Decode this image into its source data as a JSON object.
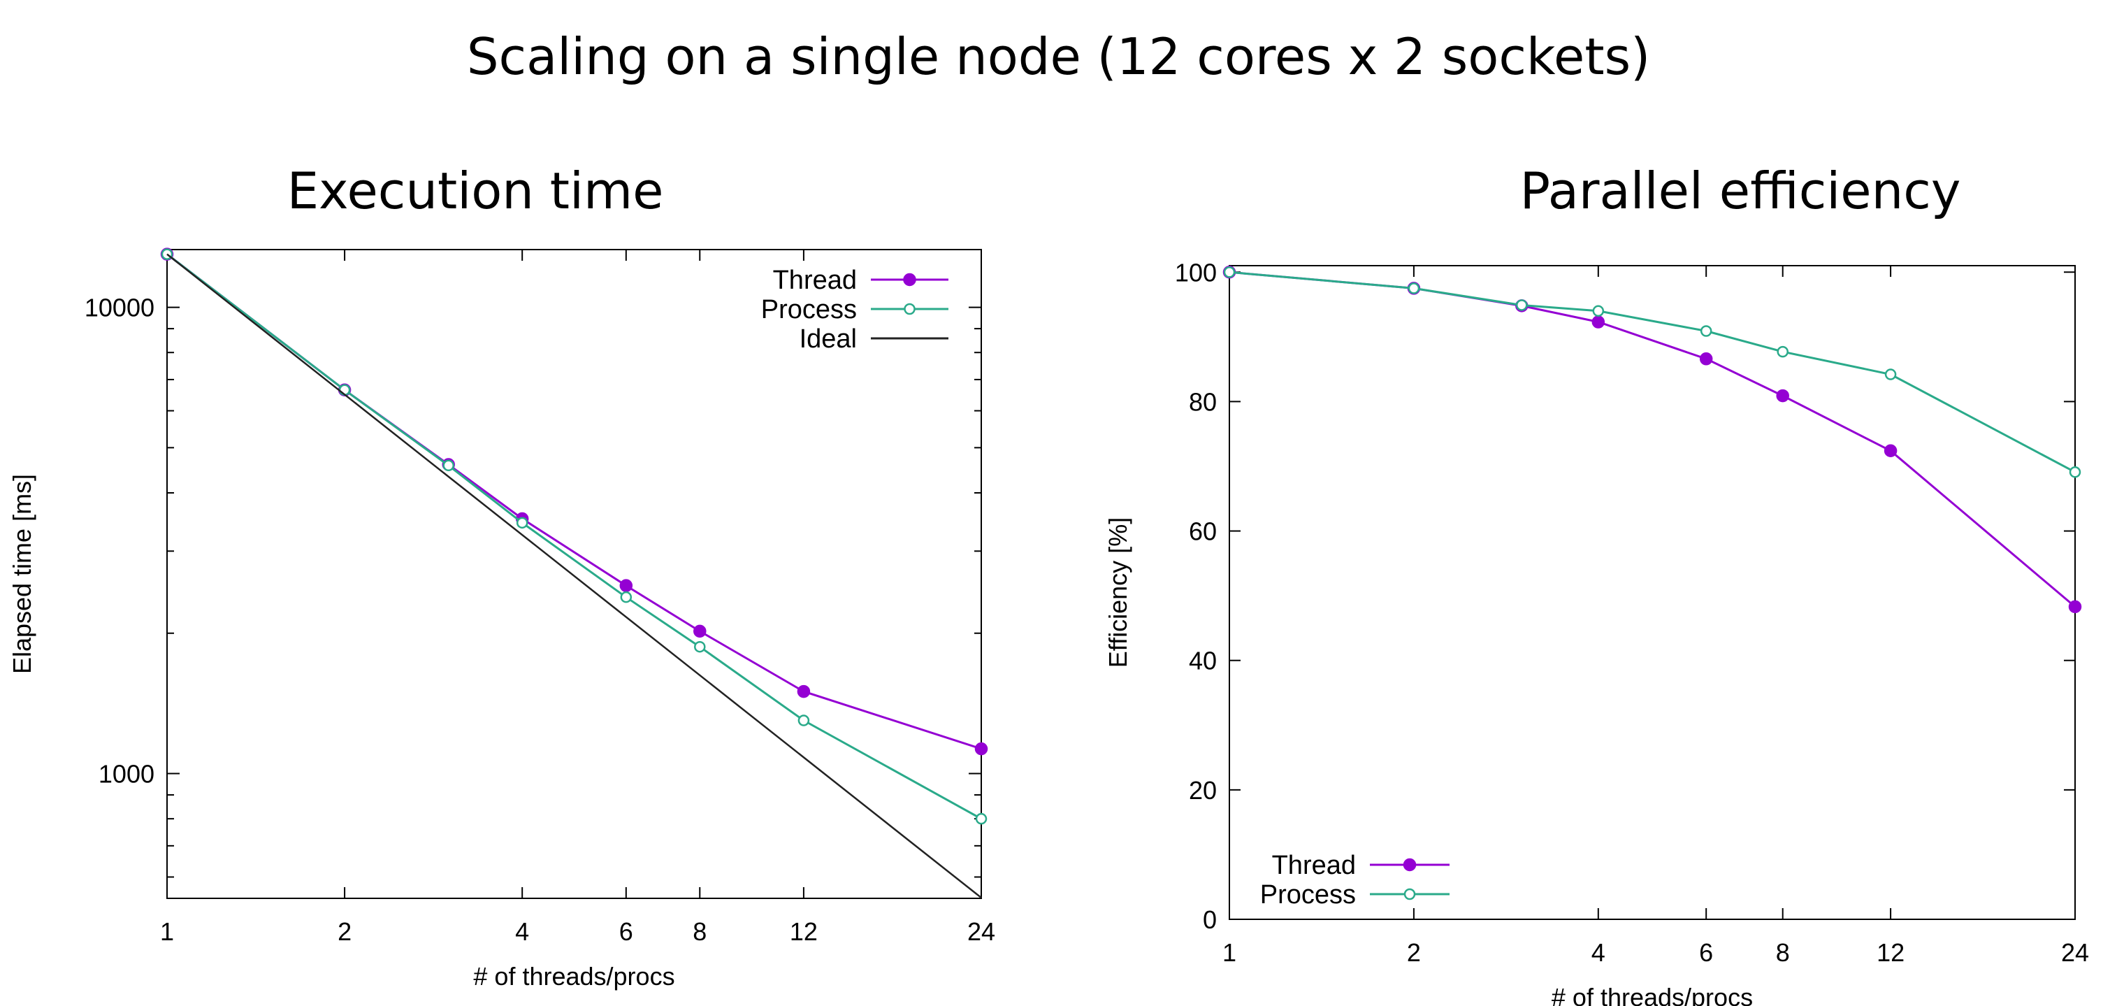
{
  "title": "Scaling on a single node (12 cores x 2 sockets)",
  "colors": {
    "thread": "#9400d3",
    "process": "#2aaa8a",
    "ideal": "#222222"
  },
  "chart_data": [
    {
      "type": "line",
      "title": "Execution time",
      "xlabel": "# of threads/procs",
      "ylabel": "Elapsed time [ms]",
      "xscale": "log",
      "yscale": "log",
      "xlim": [
        1,
        24
      ],
      "ylim": [
        540,
        13300
      ],
      "xticks": [
        1,
        2,
        4,
        6,
        8,
        12,
        24
      ],
      "xtick_labels": [
        "1",
        "2",
        "4",
        "6",
        "8",
        "12",
        "24"
      ],
      "yticks": [
        1000,
        10000
      ],
      "ytick_labels": [
        "1000",
        "10000"
      ],
      "legend_position": "top-right",
      "grid": false,
      "series": [
        {
          "name": "Thread",
          "marker": "filled-circle",
          "x": [
            1,
            2,
            3,
            4,
            6,
            8,
            12,
            24
          ],
          "y": [
            13000,
            6650,
            4600,
            3520,
            2530,
            2020,
            1500,
            1130
          ]
        },
        {
          "name": "Process",
          "marker": "open-circle",
          "x": [
            1,
            2,
            3,
            4,
            6,
            8,
            12,
            24
          ],
          "y": [
            13000,
            6650,
            4580,
            3450,
            2390,
            1870,
            1300,
            800
          ]
        },
        {
          "name": "Ideal",
          "marker": "none",
          "x": [
            1,
            24
          ],
          "y": [
            13000,
            541.7
          ]
        }
      ]
    },
    {
      "type": "line",
      "title": "Parallel efficiency",
      "xlabel": "# of threads/procs",
      "ylabel": "Efficiency [%]",
      "xscale": "log",
      "yscale": "linear",
      "xlim": [
        1,
        24
      ],
      "ylim": [
        0,
        101
      ],
      "xticks": [
        1,
        2,
        4,
        6,
        8,
        12,
        24
      ],
      "xtick_labels": [
        "1",
        "2",
        "4",
        "6",
        "8",
        "12",
        "24"
      ],
      "yticks": [
        0,
        20,
        40,
        60,
        80,
        100
      ],
      "ytick_labels": [
        "0",
        "20",
        "40",
        "60",
        "80",
        "100"
      ],
      "legend_position": "bottom-left",
      "grid": false,
      "series": [
        {
          "name": "Thread",
          "marker": "filled-circle",
          "x": [
            1,
            2,
            3,
            4,
            6,
            8,
            12,
            24
          ],
          "y": [
            100,
            97.5,
            94.8,
            92.3,
            86.6,
            80.9,
            72.4,
            48.3
          ]
        },
        {
          "name": "Process",
          "marker": "open-circle",
          "x": [
            1,
            2,
            3,
            4,
            6,
            8,
            12,
            24
          ],
          "y": [
            100,
            97.5,
            94.9,
            94,
            90.9,
            87.7,
            84.2,
            69.1
          ]
        }
      ]
    }
  ]
}
